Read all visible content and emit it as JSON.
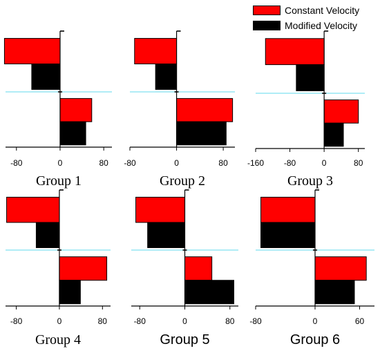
{
  "legend": {
    "items": [
      {
        "label": "Constant Velocity",
        "color": "#ff0000"
      },
      {
        "label": "Modified Velocity",
        "color": "#000000"
      }
    ]
  },
  "chart_data": [
    {
      "type": "bar",
      "orientation": "horizontal",
      "title": "Group 1",
      "title_font": "serif",
      "xlim": [
        -100,
        95
      ],
      "x_ticks": [
        -80,
        0,
        80
      ],
      "series": [
        {
          "name": "Constant Velocity",
          "values": [
            -102,
            58
          ]
        },
        {
          "name": "Modified Velocity",
          "values": [
            -52,
            47
          ]
        }
      ]
    },
    {
      "type": "bar",
      "orientation": "horizontal",
      "title": "Group 2",
      "title_font": "serif",
      "xlim": [
        -80,
        100
      ],
      "x_ticks": [
        -80,
        0,
        80
      ],
      "series": [
        {
          "name": "Constant Velocity",
          "values": [
            -72,
            96
          ]
        },
        {
          "name": "Modified Velocity",
          "values": [
            -36,
            85
          ]
        }
      ]
    },
    {
      "type": "bar",
      "orientation": "horizontal",
      "title": "Group 3",
      "title_font": "serif",
      "xlim": [
        -160,
        95
      ],
      "x_ticks": [
        -160,
        -80,
        0,
        80
      ],
      "series": [
        {
          "name": "Constant Velocity",
          "values": [
            -137,
            80
          ]
        },
        {
          "name": "Modified Velocity",
          "values": [
            -65,
            45
          ]
        }
      ]
    },
    {
      "type": "bar",
      "orientation": "horizontal",
      "title": "Group 4",
      "title_font": "serif",
      "xlim": [
        -100,
        95
      ],
      "x_ticks": [
        -80,
        0,
        80
      ],
      "series": [
        {
          "name": "Constant Velocity",
          "values": [
            -98,
            88
          ]
        },
        {
          "name": "Modified Velocity",
          "values": [
            -43,
            39
          ]
        }
      ]
    },
    {
      "type": "bar",
      "orientation": "horizontal",
      "title": "Group 5",
      "title_font": "sans",
      "xlim": [
        -95,
        95
      ],
      "x_ticks": [
        -80,
        0,
        80
      ],
      "series": [
        {
          "name": "Constant Velocity",
          "values": [
            -87,
            48
          ]
        },
        {
          "name": "Modified Velocity",
          "values": [
            -66,
            87
          ]
        }
      ]
    },
    {
      "type": "bar",
      "orientation": "horizontal",
      "title": "Group 6",
      "title_font": "sans",
      "xlim": [
        -80,
        80
      ],
      "x_ticks": [
        -80,
        0,
        60
      ],
      "series": [
        {
          "name": "Constant Velocity",
          "values": [
            -73,
            69
          ]
        },
        {
          "name": "Modified Velocity",
          "values": [
            -73,
            53
          ]
        }
      ]
    }
  ]
}
